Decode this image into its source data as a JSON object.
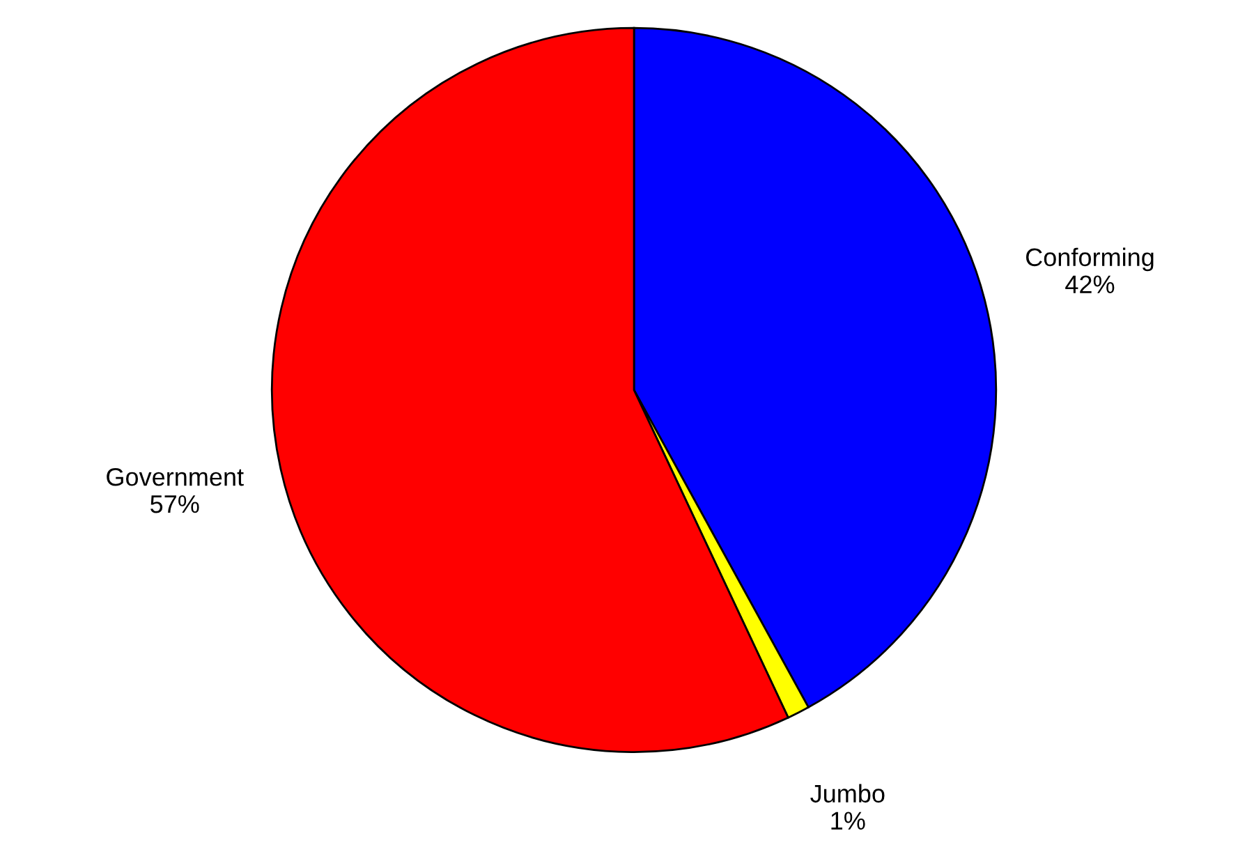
{
  "chart_data": {
    "type": "pie",
    "categories": [
      "Conforming",
      "Jumbo",
      "Government"
    ],
    "values": [
      42,
      1,
      57
    ],
    "colors": [
      "#0000ff",
      "#ffff00",
      "#ff0000"
    ],
    "value_labels": [
      "42%",
      "1%",
      "57%"
    ],
    "legend": false
  }
}
